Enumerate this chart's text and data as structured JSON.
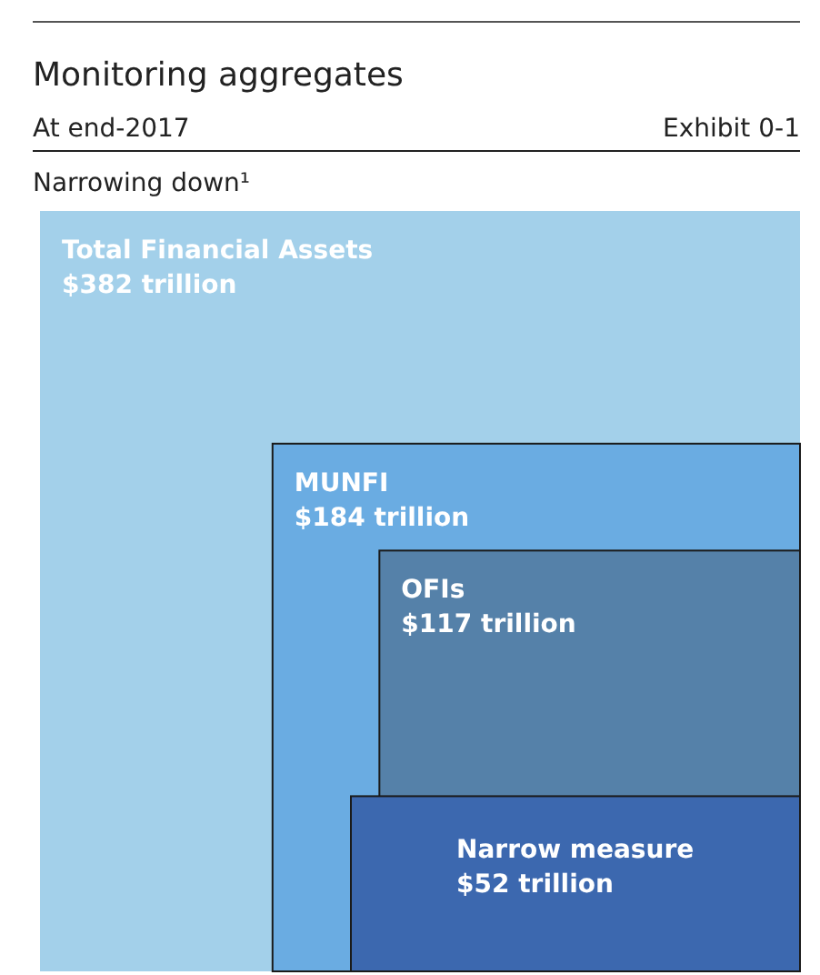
{
  "chart_data": {
    "type": "other",
    "title": "Monitoring aggregates",
    "subtitle": "At end-2017",
    "annotations": [
      "Exhibit 0-1",
      "Narrowing down¹"
    ],
    "categories": [
      "Total Financial Assets",
      "MUNFI",
      "OFIs",
      "Narrow measure"
    ],
    "values": [
      382,
      184,
      117,
      52
    ],
    "value_labels": [
      "$382 trillion",
      "$184 trillion",
      "$117 trillion",
      "$52 trillion"
    ],
    "colors": [
      "#a3d0ea",
      "#6aace2",
      "#5581a9",
      "#3c68af"
    ]
  }
}
